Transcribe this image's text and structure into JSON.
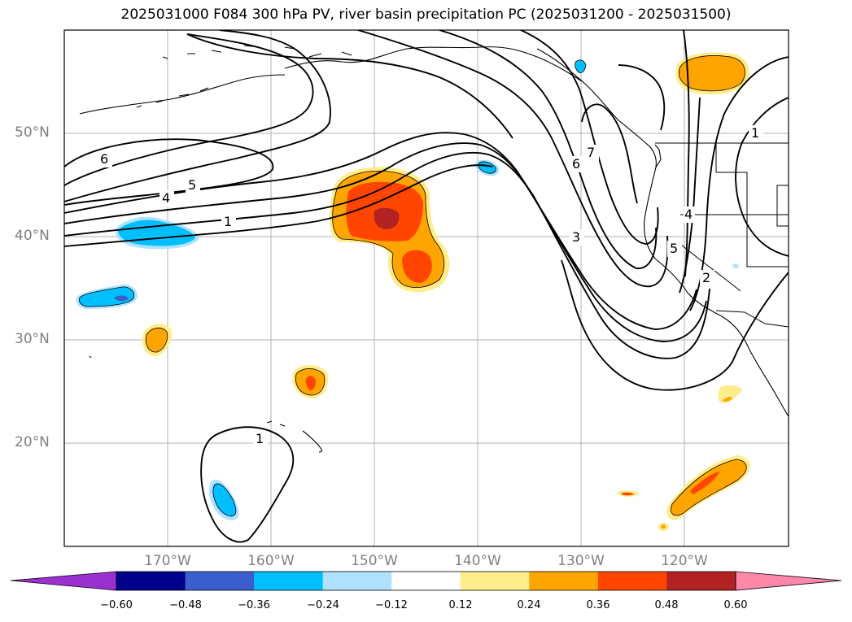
{
  "title": "2025031000 F084 300 hPa PV, river basin precipitation PC (2025031200 - 2025031500)",
  "map": {
    "lon_range": [
      -180,
      -110
    ],
    "lat_range": [
      10,
      60
    ],
    "lat_labels": [
      "50°N",
      "40°N",
      "30°N",
      "20°N"
    ],
    "lon_labels": [
      "170°W",
      "160°W",
      "150°W",
      "140°W",
      "130°W",
      "120°W"
    ],
    "pv_contour_labels": [
      "6",
      "5",
      "4",
      "1",
      "1",
      "7",
      "6",
      "3",
      "5",
      "4",
      "2",
      "1"
    ]
  },
  "colorbar": {
    "ticks": [
      "−0.60",
      "−0.48",
      "−0.36",
      "−0.24",
      "−0.12",
      "0.12",
      "0.24",
      "0.36",
      "0.48",
      "0.60"
    ],
    "colors": [
      "#9b30d0",
      "#00008b",
      "#3a5fcd",
      "#00bfff",
      "#b0e2ff",
      "#ffffff",
      "#ffec8b",
      "#ffa500",
      "#ff4500",
      "#b22222",
      "#ff88aa"
    ]
  }
}
